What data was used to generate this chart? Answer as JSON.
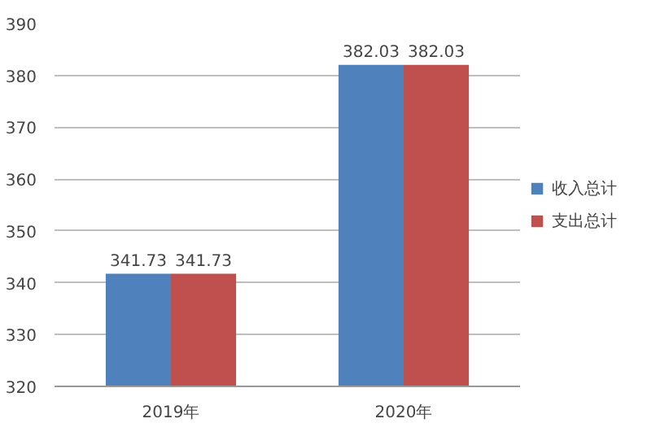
{
  "chart_data": {
    "type": "bar",
    "categories": [
      "2019年",
      "2020年"
    ],
    "series": [
      {
        "name": "收入总计",
        "color": "#4f81bd",
        "values": [
          341.73,
          382.03
        ]
      },
      {
        "name": "支出总计",
        "color": "#c0504d",
        "values": [
          341.73,
          382.03
        ]
      }
    ],
    "ylim": [
      320,
      390
    ],
    "yticks": [
      320,
      330,
      340,
      350,
      360,
      370,
      380,
      390
    ],
    "grid": "y",
    "legend": "right",
    "data_labels": true
  }
}
